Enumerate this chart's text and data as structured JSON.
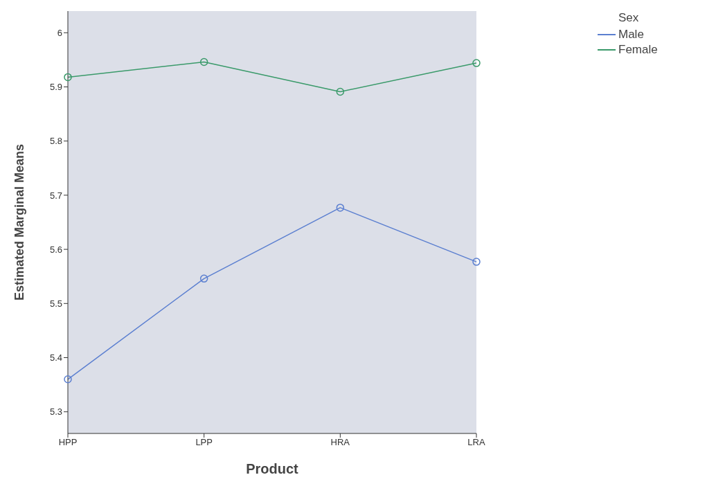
{
  "chart_data": {
    "type": "line",
    "xlabel": "Product",
    "ylabel": "Estimated Marginal Means",
    "legend_title": "Sex",
    "legend": "top right",
    "marker": "circle",
    "categories": [
      "HPP",
      "LPP",
      "HRA",
      "LRA"
    ],
    "ylim": [
      5.26,
      6.04
    ],
    "yticks": [
      5.3,
      5.4,
      5.5,
      5.6,
      5.7,
      5.8,
      5.9,
      6
    ],
    "series": [
      {
        "name": "Male",
        "color": "#5b7fd0",
        "values": [
          5.36,
          5.546,
          5.677,
          5.577
        ]
      },
      {
        "name": "Female",
        "color": "#3a9a6a",
        "values": [
          5.918,
          5.946,
          5.891,
          5.944
        ]
      }
    ]
  }
}
